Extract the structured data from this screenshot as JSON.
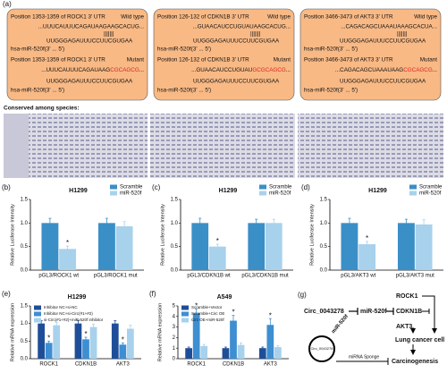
{
  "panel_a": {
    "label": "(a)",
    "conserved_label": "Conserved among species:",
    "boxes": [
      {
        "wt_position": "Position 1353-1359 of ROCK1 3' UTR",
        "wt_type": "Wild type",
        "wt_seq": "...UUUCAUUUCAGAUAAGAAGCACUG...",
        "pairing": "|||||||",
        "mirna": "UUGGGAGAUUUCCUUCGUGAA",
        "mirna_label": "hsa-miR-520f(3' ... 5')",
        "mut_position": "Position 1353-1359 of ROCK1 3' UTR",
        "mut_type": "Mutant",
        "mut_seq": [
          "...UUUCAUUUCAGAUAAG",
          "CGCAGCG",
          "..."
        ]
      },
      {
        "wt_position": "Position 126-132 of CDKN1B 3' UTR",
        "wt_type": "Wild type",
        "wt_seq": "...GUAACAUCCUGUAUAAGCACUG...",
        "pairing": "|||||||",
        "mirna": "UUGGGAGAUUUCCUUCGUGAA",
        "mirna_label": "hsa-miR-520f(3' ... 5')",
        "mut_position": "Position 126-132 of CDKN1B 3' UTR",
        "mut_type": "Mutant",
        "mut_seq": [
          "...GUAACAUCCUGUAU",
          "GCGCAGCG",
          "..."
        ]
      },
      {
        "wt_position": "Position 3466-3473 of AKT3 3' UTR",
        "wt_type": "Wild type",
        "wt_seq": "...CAGACAGCUAAAUAAAGCACUA...",
        "pairing": "|||||||",
        "mirna": "UUGGGAGAUUUCCUUCGUGAA",
        "mirna_label": "hsa-miR-520f(3' ... 5')",
        "mut_position": "Position 3466-3473 of AKT3 3' UTR",
        "mut_type": "Mutant",
        "mut_seq": [
          "...CAGACAGCUAAAUAAG",
          "CGCAGCG",
          "..."
        ]
      }
    ]
  },
  "chart_data": [
    {
      "type": "bar",
      "label": "(b)",
      "title": "H1299",
      "ylabel": "Relative Luciferase Intensity",
      "categories": [
        "pGL3/ROCK1 wt",
        "pGL3/ROCK1 mut"
      ],
      "series": [
        {
          "name": "Scramble",
          "color": "#3a8fc7",
          "values": [
            1.0,
            1.0
          ],
          "errors": [
            0.1,
            0.1
          ]
        },
        {
          "name": "miR-520f",
          "color": "#a8d1ec",
          "values": [
            0.45,
            0.93
          ],
          "errors": [
            0.06,
            0.1
          ]
        }
      ],
      "ylim": [
        0,
        1.5
      ],
      "yticks": [
        {
          "value": 0,
          "label": "0.0"
        },
        {
          "value": 0.5,
          "label": "0.5"
        },
        {
          "value": 1,
          "label": "1.0"
        },
        {
          "value": 1.5,
          "label": "1.5"
        }
      ],
      "legend": "upper right",
      "annotations": [
        {
          "text": "*",
          "series": 1,
          "index": 0
        }
      ]
    },
    {
      "type": "bar",
      "label": "(c)",
      "title": "H1299",
      "ylabel": "Relative Luciferase Intensity",
      "categories": [
        "pGL3/CDKN1B wt",
        "pGL3/CDKN1B mut"
      ],
      "series": [
        {
          "name": "Scramble",
          "color": "#3a8fc7",
          "values": [
            1.0,
            1.0
          ],
          "errors": [
            0.1,
            0.08
          ]
        },
        {
          "name": "miR-520f",
          "color": "#a8d1ec",
          "values": [
            0.5,
            1.0
          ],
          "errors": [
            0.05,
            0.08
          ]
        }
      ],
      "ylim": [
        0,
        1.5
      ],
      "yticks": [
        {
          "value": 0,
          "label": "0.0"
        },
        {
          "value": 0.5,
          "label": "0.5"
        },
        {
          "value": 1,
          "label": "1.0"
        },
        {
          "value": 1.5,
          "label": "1.5"
        }
      ],
      "legend": "upper right",
      "annotations": [
        {
          "text": "*",
          "series": 1,
          "index": 0
        }
      ]
    },
    {
      "type": "bar",
      "label": "(d)",
      "title": "H1299",
      "ylabel": "Relative Luciferase Intensity",
      "categories": [
        "pGL3/AKT3 wt",
        "pGL3/AKT3 mut"
      ],
      "series": [
        {
          "name": "Scramble",
          "color": "#3a8fc7",
          "values": [
            1.0,
            1.0
          ],
          "errors": [
            0.1,
            0.08
          ]
        },
        {
          "name": "miR-520f",
          "color": "#a8d1ec",
          "values": [
            0.55,
            0.97
          ],
          "errors": [
            0.06,
            0.1
          ]
        }
      ],
      "ylim": [
        0,
        1.5
      ],
      "yticks": [
        {
          "value": 0,
          "label": "0.0"
        },
        {
          "value": 0.5,
          "label": "0.5"
        },
        {
          "value": 1,
          "label": "1.0"
        },
        {
          "value": 1.5,
          "label": "1.5"
        }
      ],
      "legend": "upper right",
      "annotations": [
        {
          "text": "*",
          "series": 1,
          "index": 0
        }
      ]
    },
    {
      "type": "bar",
      "label": "(e)",
      "title": "H1299",
      "ylabel": "Relative mRNA expression",
      "categories": [
        "ROCK1",
        "CDKN1B",
        "AKT3"
      ],
      "series": [
        {
          "name": "Inhibitor NC+si-NC",
          "color": "#1f4e99",
          "values": [
            1.0,
            1.0,
            1.0
          ],
          "errors": [
            0.08,
            0.08,
            0.08
          ]
        },
        {
          "name": "Inhibitor NC+si-Circ(#1+#2)",
          "color": "#3d8fd1",
          "values": [
            0.45,
            0.55,
            0.4
          ],
          "errors": [
            0.05,
            0.06,
            0.05
          ]
        },
        {
          "name": "si-Circ(#1+#2)+miR-520f inhibitor",
          "color": "#a8d1ec",
          "values": [
            0.95,
            0.9,
            0.85
          ],
          "errors": [
            0.08,
            0.08,
            0.1
          ]
        }
      ],
      "ylim": [
        0,
        1.5
      ],
      "yticks": [
        {
          "value": 0,
          "label": "0.0"
        },
        {
          "value": 0.5,
          "label": "0.5"
        },
        {
          "value": 1,
          "label": "1.0"
        },
        {
          "value": 1.5,
          "label": "1.5"
        }
      ],
      "legend": "upper left",
      "annotations": [
        {
          "text": "*",
          "series": 1,
          "index": 0
        },
        {
          "text": "*",
          "series": 1,
          "index": 1
        },
        {
          "text": "*",
          "series": 1,
          "index": 2
        }
      ]
    },
    {
      "type": "bar",
      "label": "(f)",
      "title": "A549",
      "ylabel": "Relative mRNA expression",
      "categories": [
        "ROCK1",
        "CDKN1B",
        "AKT3"
      ],
      "series": [
        {
          "name": "Scramble+Vector",
          "color": "#1f4e99",
          "values": [
            1.0,
            1.0,
            1.0
          ],
          "errors": [
            0.1,
            0.1,
            0.1
          ]
        },
        {
          "name": "Scramble+Circ OE",
          "color": "#3d8fd1",
          "values": [
            4.3,
            3.6,
            3.2
          ],
          "errors": [
            0.4,
            0.5,
            0.6
          ]
        },
        {
          "name": "Circ OE+miR-520f",
          "color": "#a8d1ec",
          "values": [
            1.2,
            1.3,
            1.1
          ],
          "errors": [
            0.15,
            0.2,
            0.15
          ]
        }
      ],
      "ylim": [
        0,
        5
      ],
      "yticks": [
        0,
        1,
        2,
        3,
        4,
        5
      ],
      "legend": "upper left",
      "annotations": [
        {
          "text": "*",
          "series": 1,
          "index": 0
        },
        {
          "text": "*",
          "series": 1,
          "index": 1
        },
        {
          "text": "*",
          "series": 1,
          "index": 2
        }
      ]
    }
  ],
  "panel_g": {
    "label": "(g)",
    "circ": "Circ_0043278",
    "mirna": "miR-520f",
    "targets": [
      "ROCK1",
      "CDKN1B",
      "AKT3"
    ],
    "cell": "Lung cancer cell",
    "outcome": "Carcinogenesis",
    "sponge": "miRNA Sponge",
    "circle_label": "Circ_0043278",
    "circle_mirna": "miR-520f"
  }
}
